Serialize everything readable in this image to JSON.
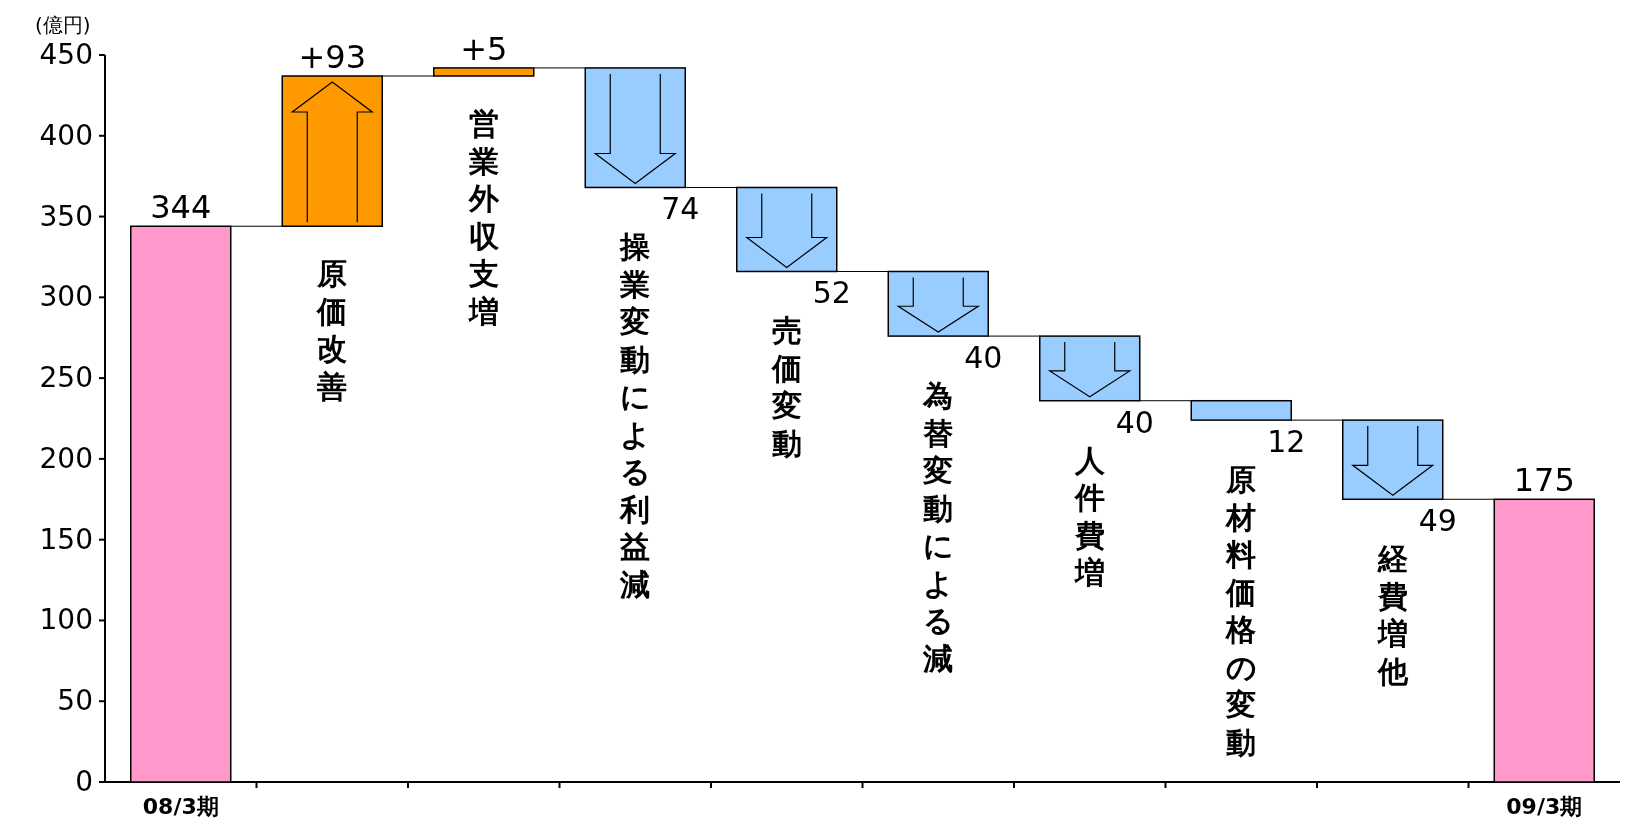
{
  "chart_data": {
    "type": "bar",
    "ylabel": "(億円)",
    "categories": [
      "08/3期",
      "原価改善",
      "営業外収支増",
      "操業変動による利益減",
      "売価変動",
      "為替変動による減",
      "人件費増",
      "原材料価格の変動",
      "経費増他",
      "09/3期"
    ],
    "base": [
      0,
      344,
      437,
      442,
      368,
      316,
      276,
      236,
      224,
      0
    ],
    "values": [
      344,
      93,
      5,
      -74,
      -52,
      -40,
      -40,
      -12,
      -49,
      175
    ],
    "colors": [
      "#ff99cc",
      "#ff9900",
      "#ff9900",
      "#99ccff",
      "#99ccff",
      "#99ccff",
      "#99ccff",
      "#99ccff",
      "#99ccff",
      "#ff99cc"
    ],
    "value_labels": [
      "344",
      "+93",
      "+5",
      "74",
      "52",
      "40",
      "40",
      "12",
      "49",
      "175"
    ],
    "ylim": [
      0,
      450
    ],
    "yticks": [
      0,
      50,
      100,
      150,
      200,
      250,
      300,
      350,
      400,
      450
    ],
    "grid": false
  }
}
